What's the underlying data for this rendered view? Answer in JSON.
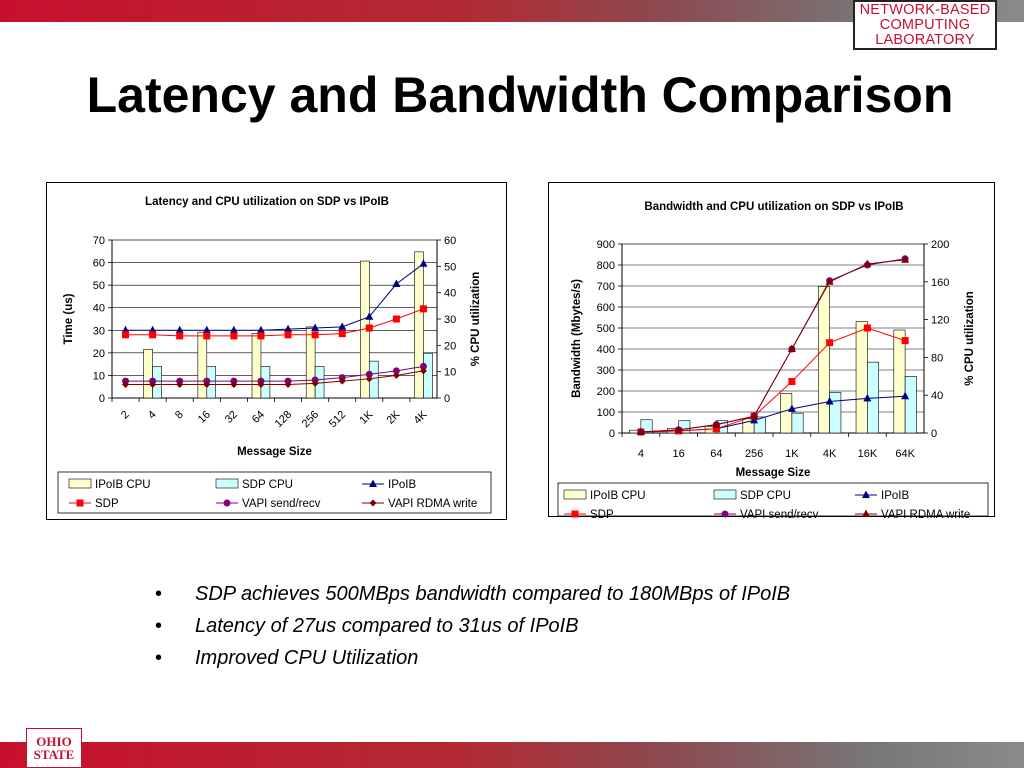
{
  "header": {
    "lab_logo_lines": [
      "NETWORK-BASED",
      "COMPUTING",
      "LABORATORY"
    ]
  },
  "slide": {
    "title": "Latency and Bandwidth Comparison",
    "bullets": [
      "SDP achieves 500MBps bandwidth compared to 180MBps of IPoIB",
      "Latency of 27us compared to 31us of IPoIB",
      "Improved CPU Utilization"
    ],
    "bullet_glyph": "•"
  },
  "footer": {
    "osu_logo_lines": [
      "OHIO",
      "STATE"
    ]
  },
  "colors": {
    "brand_red": "#c8102e",
    "ipoib_cpu_bar": "#ffffcc",
    "sdp_cpu_bar": "#ccffff",
    "ipoib_line": "#000080",
    "sdp_line": "#ff0000",
    "vapi_send_line": "#800080",
    "vapi_rdma_line": "#800000"
  },
  "chart_data": [
    {
      "type": "bar",
      "title": "Latency and CPU utilization on SDP vs IPoIB",
      "xlabel": "Message Size",
      "ylabel": "Time (us)",
      "y2label": "% CPU utilization",
      "categories": [
        "2",
        "4",
        "8",
        "16",
        "32",
        "64",
        "128",
        "256",
        "512",
        "1K",
        "2K",
        "4K"
      ],
      "ylim": [
        0,
        70
      ],
      "yticks": [
        0,
        10,
        20,
        30,
        40,
        50,
        60,
        70
      ],
      "y2lim": [
        0,
        60
      ],
      "y2ticks": [
        0,
        10,
        20,
        30,
        40,
        50,
        60
      ],
      "grid": true,
      "legend_position": "bottom",
      "legend": [
        "IPoIB CPU",
        "SDP CPU",
        "IPoIB",
        "SDP",
        "VAPI send/recv",
        "VAPI RDMA write"
      ],
      "series": [
        {
          "name": "IPoIB CPU",
          "kind": "bar",
          "axis": "right",
          "color": "#ffffcc",
          "values": [
            null,
            18.5,
            null,
            25,
            null,
            24.5,
            null,
            27,
            null,
            52,
            null,
            55.5
          ]
        },
        {
          "name": "SDP CPU",
          "kind": "bar",
          "axis": "right",
          "color": "#ccffff",
          "values": [
            null,
            12,
            null,
            12,
            null,
            12,
            null,
            12,
            null,
            14,
            null,
            17
          ]
        },
        {
          "name": "IPoIB",
          "kind": "line",
          "axis": "left",
          "marker": "triangle",
          "color": "#000080",
          "values": [
            30,
            30,
            30,
            30,
            30,
            30,
            30.5,
            31,
            31.5,
            36,
            50.5,
            59.5
          ]
        },
        {
          "name": "SDP",
          "kind": "line",
          "axis": "left",
          "marker": "square",
          "color": "#ff0000",
          "values": [
            28,
            28,
            27.5,
            27.5,
            27.5,
            27.5,
            28,
            28,
            28.5,
            31,
            35,
            39.5
          ]
        },
        {
          "name": "VAPI send/recv",
          "kind": "line",
          "axis": "left",
          "marker": "circle",
          "color": "#800080",
          "values": [
            7.5,
            7.5,
            7.5,
            7.5,
            7.5,
            7.5,
            7.5,
            8,
            9,
            10.5,
            12,
            14
          ]
        },
        {
          "name": "VAPI RDMA write",
          "kind": "line",
          "axis": "left",
          "marker": "diamond",
          "color": "#800000",
          "values": [
            6,
            6,
            6,
            6,
            6,
            6,
            6,
            6.5,
            7.5,
            8.5,
            10,
            12
          ]
        }
      ]
    },
    {
      "type": "bar",
      "title": "Bandwidth and CPU utilization on SDP vs IPoIB",
      "xlabel": "Message Size",
      "ylabel": "Bandwidth (Mbytes/s)",
      "y2label": "% CPU utilization",
      "categories": [
        "4",
        "16",
        "64",
        "256",
        "1K",
        "4K",
        "16K",
        "64K"
      ],
      "ylim": [
        0,
        900
      ],
      "yticks": [
        0,
        100,
        200,
        300,
        400,
        500,
        600,
        700,
        800,
        900
      ],
      "y2lim": [
        0,
        200
      ],
      "y2ticks": [
        0,
        40,
        80,
        120,
        160,
        200
      ],
      "grid": true,
      "legend_position": "bottom",
      "legend": [
        "IPoIB CPU",
        "SDP CPU",
        "IPoIB",
        "SDP",
        "VAPI send/recv",
        "VAPI RDMA write"
      ],
      "series": [
        {
          "name": "IPoIB CPU",
          "kind": "bar",
          "axis": "right",
          "color": "#ffffcc",
          "values": [
            3,
            5,
            7,
            15,
            42,
            155,
            118,
            109
          ]
        },
        {
          "name": "SDP CPU",
          "kind": "bar",
          "axis": "right",
          "color": "#ccffff",
          "values": [
            14,
            13,
            13,
            17,
            21,
            43,
            75,
            60
          ]
        },
        {
          "name": "IPoIB",
          "kind": "line",
          "axis": "left",
          "marker": "triangle",
          "color": "#000080",
          "values": [
            5,
            10,
            20,
            60,
            115,
            150,
            165,
            175
          ]
        },
        {
          "name": "SDP",
          "kind": "line",
          "axis": "left",
          "marker": "square",
          "color": "#ff0000",
          "values": [
            5,
            10,
            20,
            80,
            245,
            430,
            500,
            440
          ]
        },
        {
          "name": "VAPI send/recv",
          "kind": "line",
          "axis": "left",
          "marker": "circle",
          "color": "#800080",
          "values": [
            5,
            15,
            40,
            80,
            400,
            725,
            800,
            830
          ]
        },
        {
          "name": "VAPI RDMA write",
          "kind": "line",
          "axis": "left",
          "marker": "triangle",
          "color": "#800000",
          "values": [
            5,
            15,
            40,
            80,
            400,
            720,
            805,
            825
          ]
        }
      ]
    }
  ]
}
